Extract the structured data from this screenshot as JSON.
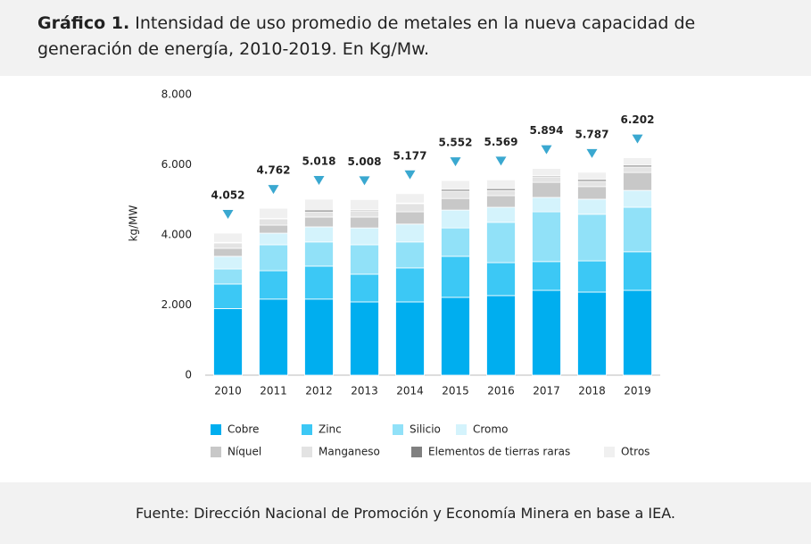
{
  "header": {
    "label": "Gráfico 1.",
    "title": "Intensidad de uso promedio de metales en la nueva capacidad de generación de energía, 2010-2019. En Kg/Mw."
  },
  "footer": {
    "source": "Fuente: Dirección Nacional de Promoción y Economía Minera en base a IEA."
  },
  "chart_data": {
    "type": "stacked_bar",
    "ylabel": "kg/MW",
    "categories": [
      "2010",
      "2011",
      "2012",
      "2013",
      "2014",
      "2015",
      "2016",
      "2017",
      "2018",
      "2019"
    ],
    "ylim": [
      0,
      8000
    ],
    "yticks": [
      {
        "value": 0,
        "label": "0"
      },
      {
        "value": 2000,
        "label": "2.000"
      },
      {
        "value": 4000,
        "label": "4.000"
      },
      {
        "value": 6000,
        "label": "6.000"
      },
      {
        "value": 8000,
        "label": "8.000"
      }
    ],
    "series": [
      {
        "name": "Cobre",
        "color": "#00aeef",
        "values": [
          1900,
          2170,
          2170,
          2090,
          2090,
          2220,
          2270,
          2420,
          2370,
          2420
        ]
      },
      {
        "name": "Zinc",
        "color": "#3cc8f5",
        "values": [
          700,
          810,
          940,
          790,
          970,
          1170,
          940,
          820,
          890,
          1100
        ]
      },
      {
        "name": "Silicio",
        "color": "#91e1f8",
        "values": [
          430,
          740,
          690,
          840,
          740,
          810,
          1150,
          1420,
          1330,
          1270
        ]
      },
      {
        "name": "Cromo",
        "color": "#d4f3fc",
        "values": [
          360,
          330,
          430,
          480,
          510,
          510,
          430,
          410,
          430,
          480
        ]
      },
      {
        "name": "Níquel",
        "color": "#c8c8c8",
        "values": [
          230,
          230,
          280,
          310,
          350,
          330,
          330,
          430,
          360,
          510
        ]
      },
      {
        "name": "Manganeso",
        "color": "#e3e3e3",
        "values": [
          150,
          180,
          150,
          180,
          230,
          210,
          150,
          160,
          150,
          160
        ]
      },
      {
        "name": "Elementos de tierras raras",
        "color": "#808080",
        "values": [
          20,
          10,
          50,
          30,
          20,
          50,
          50,
          30,
          50,
          50
        ]
      },
      {
        "name": "Otros",
        "color": "#f0f0f0",
        "values": [
          262,
          292,
          308,
          288,
          267,
          252,
          249,
          204,
          207,
          212
        ]
      }
    ],
    "totals": {
      "color": "#3aa8d0",
      "values": [
        4052,
        4762,
        5018,
        5008,
        5177,
        5552,
        5569,
        5894,
        5787,
        6202
      ],
      "value_labels": [
        "4.052",
        "4.762",
        "5.018",
        "5.008",
        "5.177",
        "5.552",
        "5.569",
        "5.894",
        "5.787",
        "6.202"
      ]
    }
  }
}
